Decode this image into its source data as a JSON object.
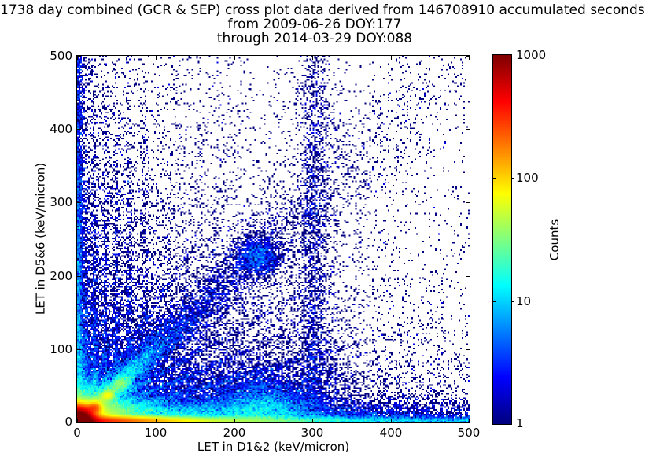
{
  "figure": {
    "title_line1": "1738 day combined (GCR & SEP) cross plot data derived from 146708910 accumulated seconds",
    "title_line2": "from 2009-06-26 DOY:177",
    "title_line3": "through 2014-03-29 DOY:088"
  },
  "chart_data": {
    "type": "heatmap",
    "title": "1738 day combined (GCR & SEP) cross plot data derived from 146708910 accumulated seconds | from 2009-06-26 DOY:177 | through 2014-03-29 DOY:088",
    "xlabel": "LET in D1&2 (keV/micron)",
    "ylabel": "LET in D5&6 (keV/micron)",
    "xlim": [
      0,
      500
    ],
    "ylim": [
      0,
      500
    ],
    "xticks": [
      0,
      100,
      200,
      300,
      400,
      500
    ],
    "yticks": [
      0,
      100,
      200,
      300,
      400,
      500
    ],
    "grid": false,
    "legend": "none",
    "colorbar": {
      "label": "Counts",
      "scale": "log",
      "min": 1,
      "max": 1000,
      "ticks": [
        1,
        10,
        100,
        1000
      ],
      "colormap": "jet",
      "color_navy": "#000080",
      "color_darkred": "#800000"
    },
    "density_model": {
      "seed": 7,
      "bins": 250,
      "bin_size": 2,
      "log_color_decades": 3,
      "features": [
        {
          "type": "gauss",
          "x": 0,
          "y": 0,
          "sx": 11,
          "sy": 10,
          "amp": 2500
        },
        {
          "type": "gauss",
          "x": 0,
          "y": 0,
          "sx": 30,
          "sy": 24,
          "amp": 50
        },
        {
          "type": "hband",
          "y": 2,
          "sy": 3.5,
          "amp0": 500,
          "lx0": 60,
          "amp1": 30,
          "lx1": 350
        },
        {
          "type": "hband",
          "y": 8,
          "sy": 12,
          "amp0": 30,
          "lx0": 100,
          "amp1": 4,
          "lx1": 250
        },
        {
          "type": "hexp",
          "sy": 55,
          "amp0": 3,
          "lx0": 130,
          "amp1": 0.8,
          "lx1": 400
        },
        {
          "type": "vband",
          "x": 2,
          "sx": 3,
          "amp0": 8,
          "ly0": 350,
          "amp1": 0,
          "ly1": 1
        },
        {
          "type": "vband",
          "x": 8,
          "sx": 6,
          "amp0": 5,
          "ly0": 90,
          "amp1": 0.8,
          "ly1": 500
        },
        {
          "type": "diag",
          "spread0": 3,
          "spreadk": 0.08,
          "amp0": 60,
          "lu0": 35,
          "amp1": 2.5,
          "lu1": 130
        },
        {
          "type": "gauss",
          "x": 230,
          "y": 225,
          "sx": 15,
          "sy": 14,
          "amp": 4
        },
        {
          "type": "gauss",
          "x": 22,
          "y": 20,
          "sx": 5,
          "sy": 4,
          "amp": 150
        },
        {
          "type": "gauss",
          "x": 40,
          "y": 37,
          "sx": 5,
          "sy": 4,
          "amp": 45
        },
        {
          "type": "gauss",
          "x": 57,
          "y": 53,
          "sx": 6,
          "sy": 5,
          "amp": 22
        },
        {
          "type": "gauss",
          "x": 235,
          "y": 12,
          "sx": 28,
          "sy": 22,
          "amp": 7
        },
        {
          "type": "gauss",
          "x": 235,
          "y": 5,
          "sx": 55,
          "sy": 38,
          "amp": 2
        },
        {
          "type": "vstripe",
          "x": 22,
          "sx": 2.2,
          "amp": 4,
          "ly": 150
        },
        {
          "type": "vstripe",
          "x": 36,
          "sx": 2.2,
          "amp": 3,
          "ly": 150
        },
        {
          "type": "vstripe",
          "x": 50,
          "sx": 2.2,
          "amp": 2.8,
          "ly": 160
        },
        {
          "type": "vstripe",
          "x": 66,
          "sx": 2.4,
          "amp": 2.2,
          "ly": 170
        },
        {
          "type": "vstripe",
          "x": 86,
          "sx": 2.6,
          "amp": 1.8,
          "ly": 170
        },
        {
          "type": "vstripe",
          "x": 303,
          "sx": 12,
          "amp": 0.7,
          "ly": 700
        },
        {
          "type": "vstripe",
          "x": 300,
          "sx": 4,
          "amp": 0.6,
          "ly": 500
        },
        {
          "type": "ray",
          "m": 0.3,
          "spread": 2.5,
          "amp": 8,
          "lr": 110
        },
        {
          "type": "ray",
          "m": 0.45,
          "spread": 2.5,
          "amp": 10,
          "lr": 85
        },
        {
          "type": "ray",
          "m": 0.62,
          "spread": 2.5,
          "amp": 8,
          "lr": 90
        },
        {
          "type": "ray",
          "m": 1.6,
          "spread": 2.5,
          "amp": 8,
          "lr": 70
        },
        {
          "type": "ray",
          "m": 2.6,
          "spread": 2.5,
          "amp": 6,
          "lr": 60
        },
        {
          "type": "bg",
          "amp": 1.4,
          "lx": 170,
          "ly": 200,
          "base": 0.012
        }
      ]
    }
  }
}
